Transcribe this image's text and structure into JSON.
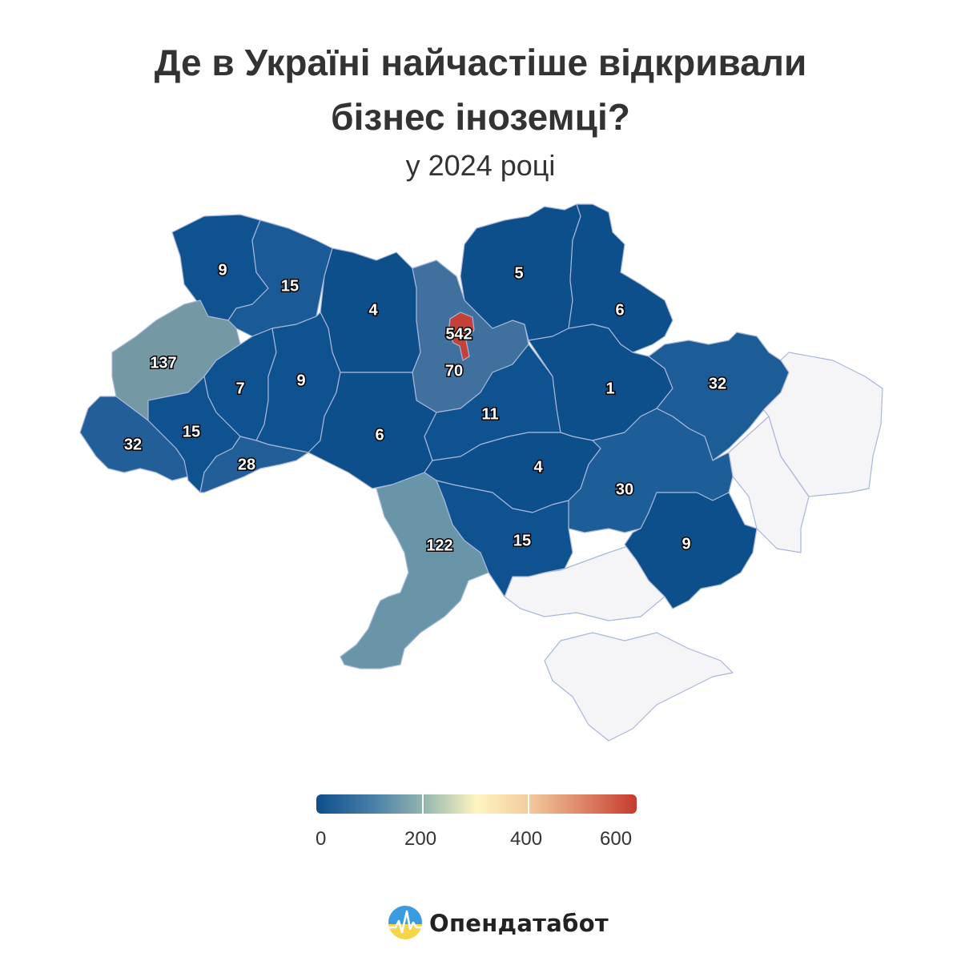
{
  "title": "Де в Україні найчастіше відкривали бізнес іноземці?",
  "subtitle": "у 2024 році",
  "colors": {
    "scale_low": "#0d4f8b",
    "scale_mid": "#fff5c0",
    "scale_high": "#c73a2e",
    "occupied": "#f5f5f7",
    "border": "#a7b6da"
  },
  "regions": [
    {
      "id": "volyn",
      "value": "9"
    },
    {
      "id": "rivne",
      "value": "15"
    },
    {
      "id": "zhytomyr",
      "value": "4"
    },
    {
      "id": "kyiv-oblast",
      "value": "70"
    },
    {
      "id": "kyiv-city",
      "value": "542"
    },
    {
      "id": "chernihiv",
      "value": "5"
    },
    {
      "id": "sumy",
      "value": "6"
    },
    {
      "id": "lviv",
      "value": "137"
    },
    {
      "id": "ternopil",
      "value": "7"
    },
    {
      "id": "khmelnytskyi",
      "value": "9"
    },
    {
      "id": "vinnytsia",
      "value": "6"
    },
    {
      "id": "cherkasy",
      "value": "11"
    },
    {
      "id": "poltava",
      "value": "1"
    },
    {
      "id": "kharkiv",
      "value": "32"
    },
    {
      "id": "zakarpattia",
      "value": "32"
    },
    {
      "id": "ivano-frankivsk",
      "value": "15"
    },
    {
      "id": "chernivtsi",
      "value": "28"
    },
    {
      "id": "kirovohrad",
      "value": "4"
    },
    {
      "id": "dnipropetrovsk",
      "value": "30"
    },
    {
      "id": "odesa",
      "value": "122"
    },
    {
      "id": "mykolaiv",
      "value": "15"
    },
    {
      "id": "zaporizhzhia",
      "value": "9"
    }
  ],
  "legend": {
    "ticks": [
      "0",
      "200",
      "400",
      "600"
    ],
    "range": [
      0,
      600
    ]
  },
  "brand": {
    "name": "Опендатабот",
    "icon": "opendatabot-logo-icon"
  }
}
